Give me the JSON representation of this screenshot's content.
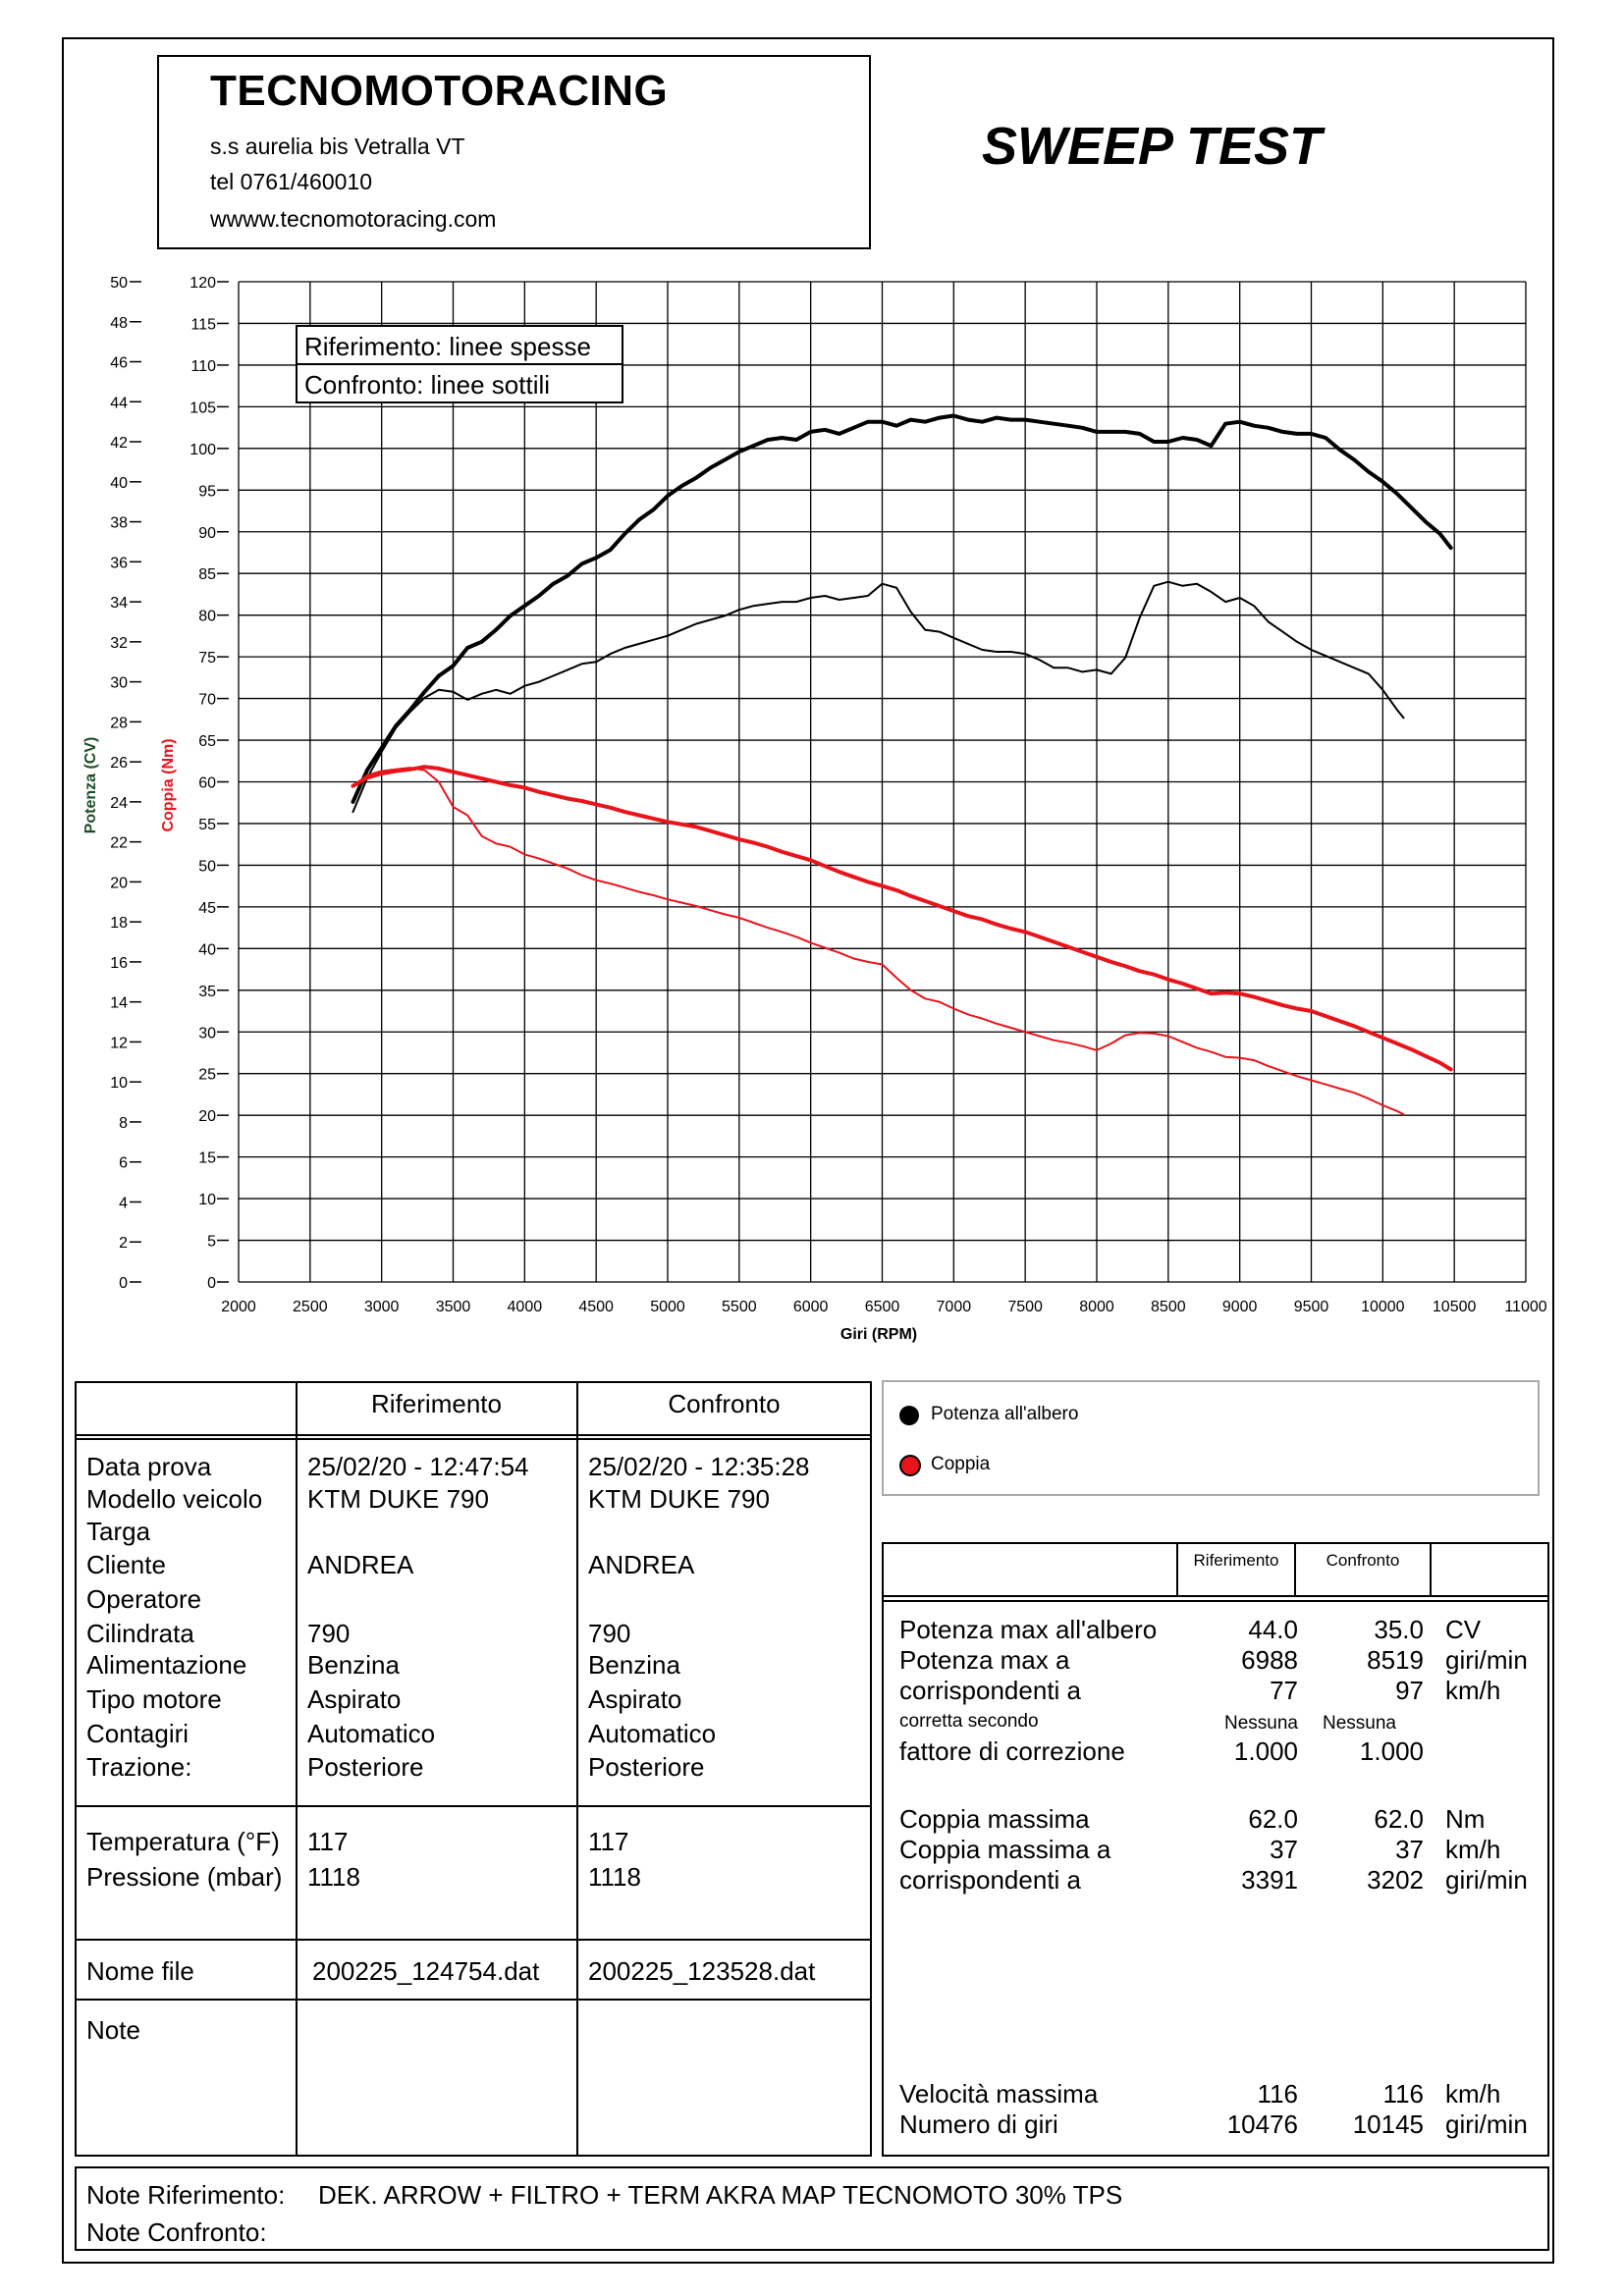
{
  "header": {
    "company": "TECNOMOTORACING",
    "address": "s.s aurelia bis  Vetralla  VT",
    "phone": "tel 0761/460010",
    "website": "wwww.tecnomotoracing.com",
    "test_title": "SWEEP TEST"
  },
  "chart_data": {
    "type": "line",
    "xlabel": "Giri (RPM)",
    "ylabel_left": "Potenza (CV)",
    "ylabel_right": "Coppia (Nm)",
    "xlim": [
      2000,
      11000
    ],
    "ylim_power": [
      0,
      50
    ],
    "ylim_torque": [
      0,
      120
    ],
    "x_ticks": [
      "2000",
      "2500",
      "3000",
      "3500",
      "4000",
      "4500",
      "5000",
      "5500",
      "6000",
      "6500",
      "7000",
      "7500",
      "8000",
      "8500",
      "9000",
      "9500",
      "10000",
      "10500",
      "11000"
    ],
    "power_ticks": [
      "0",
      "2",
      "4",
      "6",
      "8",
      "10",
      "12",
      "14",
      "16",
      "18",
      "20",
      "22",
      "24",
      "26",
      "28",
      "30",
      "32",
      "34",
      "36",
      "38",
      "40",
      "42",
      "44",
      "46",
      "48",
      "50"
    ],
    "torque_ticks": [
      "0",
      "5",
      "10",
      "15",
      "20",
      "25",
      "30",
      "35",
      "40",
      "45",
      "50",
      "55",
      "60",
      "65",
      "70",
      "75",
      "80",
      "85",
      "90",
      "95",
      "100",
      "105",
      "110",
      "115",
      "120"
    ],
    "grid": true,
    "legend_box": [
      "Riferimento: linee spesse",
      "Confronto: linee sottili"
    ],
    "colors": {
      "power": "#000000",
      "torque": "#e8141c"
    },
    "series": [
      {
        "name": "Potenza all'albero",
        "role": "Riferimento",
        "color": "#000000",
        "x": [
          2800,
          2900,
          3000,
          3100,
          3200,
          3300,
          3400,
          3500,
          3600,
          3700,
          3800,
          3900,
          4000,
          4100,
          4200,
          4300,
          4400,
          4500,
          4600,
          4700,
          4800,
          4900,
          5000,
          5100,
          5200,
          5300,
          5400,
          5500,
          5600,
          5700,
          5800,
          5900,
          6000,
          6100,
          6200,
          6300,
          6400,
          6500,
          6600,
          6700,
          6800,
          6900,
          7000,
          7100,
          7200,
          7300,
          7400,
          7500,
          7600,
          7700,
          7800,
          7900,
          8000,
          8100,
          8200,
          8300,
          8400,
          8500,
          8600,
          8700,
          8800,
          8900,
          9000,
          9100,
          9200,
          9300,
          9400,
          9500,
          9600,
          9700,
          9800,
          9900,
          10000,
          10100,
          10200,
          10300,
          10400,
          10476
        ],
        "y": [
          24.0,
          25.6,
          26.7,
          27.8,
          28.6,
          29.5,
          30.3,
          30.8,
          31.7,
          32.0,
          32.6,
          33.3,
          33.8,
          34.3,
          34.9,
          35.3,
          35.9,
          36.2,
          36.6,
          37.4,
          38.1,
          38.6,
          39.3,
          39.8,
          40.2,
          40.7,
          41.1,
          41.5,
          41.8,
          42.1,
          42.2,
          42.1,
          42.5,
          42.6,
          42.4,
          42.7,
          43.0,
          43.0,
          42.8,
          43.1,
          43.0,
          43.2,
          43.3,
          43.1,
          43.0,
          43.2,
          43.1,
          43.1,
          43.0,
          42.9,
          42.8,
          42.7,
          42.5,
          42.5,
          42.5,
          42.4,
          42.0,
          42.0,
          42.2,
          42.1,
          41.8,
          42.9,
          43.0,
          42.8,
          42.7,
          42.5,
          42.4,
          42.4,
          42.2,
          41.6,
          41.1,
          40.5,
          40.0,
          39.4,
          38.7,
          38.0,
          37.4,
          36.7
        ]
      },
      {
        "name": "Potenza all'albero",
        "role": "Confronto",
        "color": "#000000",
        "x": [
          2800,
          2900,
          3000,
          3100,
          3200,
          3300,
          3400,
          3500,
          3600,
          3700,
          3800,
          3900,
          4000,
          4100,
          4200,
          4300,
          4400,
          4500,
          4600,
          4700,
          4800,
          4900,
          5000,
          5100,
          5200,
          5300,
          5400,
          5500,
          5600,
          5700,
          5800,
          5900,
          6000,
          6100,
          6200,
          6300,
          6400,
          6500,
          6600,
          6700,
          6800,
          6900,
          7000,
          7100,
          7200,
          7300,
          7400,
          7500,
          7600,
          7700,
          7800,
          7900,
          8000,
          8100,
          8200,
          8300,
          8400,
          8500,
          8600,
          8700,
          8800,
          8900,
          9000,
          9100,
          9200,
          9300,
          9400,
          9500,
          9600,
          9700,
          9800,
          9900,
          10000,
          10100,
          10145
        ],
        "y": [
          23.5,
          25.2,
          26.5,
          27.7,
          28.5,
          29.2,
          29.6,
          29.5,
          29.1,
          29.4,
          29.6,
          29.4,
          29.8,
          30.0,
          30.3,
          30.6,
          30.9,
          31.0,
          31.4,
          31.7,
          31.9,
          32.1,
          32.3,
          32.6,
          32.9,
          33.1,
          33.3,
          33.6,
          33.8,
          33.9,
          34.0,
          34.0,
          34.2,
          34.3,
          34.1,
          34.2,
          34.3,
          34.9,
          34.7,
          33.5,
          32.6,
          32.5,
          32.2,
          31.9,
          31.6,
          31.5,
          31.5,
          31.4,
          31.1,
          30.7,
          30.7,
          30.5,
          30.6,
          30.4,
          31.2,
          33.2,
          34.8,
          35.0,
          34.8,
          34.9,
          34.5,
          34.0,
          34.2,
          33.8,
          33.0,
          32.5,
          32.0,
          31.6,
          31.3,
          31.0,
          30.7,
          30.4,
          29.6,
          28.6,
          28.2
        ]
      },
      {
        "name": "Coppia",
        "role": "Riferimento",
        "color": "#e8141c",
        "x": [
          2800,
          2900,
          3000,
          3100,
          3200,
          3300,
          3400,
          3500,
          3600,
          3700,
          3800,
          3900,
          4000,
          4100,
          4200,
          4300,
          4400,
          4500,
          4600,
          4700,
          4800,
          4900,
          5000,
          5100,
          5200,
          5300,
          5400,
          5500,
          5600,
          5700,
          5800,
          5900,
          6000,
          6100,
          6200,
          6300,
          6400,
          6500,
          6600,
          6700,
          6800,
          6900,
          7000,
          7100,
          7200,
          7300,
          7400,
          7500,
          7600,
          7700,
          7800,
          7900,
          8000,
          8100,
          8200,
          8300,
          8400,
          8500,
          8600,
          8700,
          8800,
          8900,
          9000,
          9100,
          9200,
          9300,
          9400,
          9500,
          9600,
          9700,
          9800,
          9900,
          10000,
          10100,
          10200,
          10300,
          10400,
          10476
        ],
        "y": [
          59.5,
          60.5,
          61.0,
          61.3,
          61.5,
          61.8,
          61.6,
          61.2,
          60.8,
          60.4,
          60.0,
          59.6,
          59.3,
          58.8,
          58.4,
          58.0,
          57.7,
          57.3,
          56.9,
          56.4,
          56.0,
          55.6,
          55.2,
          54.9,
          54.6,
          54.1,
          53.6,
          53.1,
          52.7,
          52.2,
          51.6,
          51.1,
          50.6,
          49.9,
          49.2,
          48.6,
          48.0,
          47.5,
          47.0,
          46.3,
          45.7,
          45.1,
          44.5,
          43.9,
          43.5,
          42.9,
          42.4,
          42.0,
          41.4,
          40.8,
          40.2,
          39.6,
          39.0,
          38.4,
          37.9,
          37.3,
          36.9,
          36.3,
          35.8,
          35.2,
          34.6,
          34.7,
          34.6,
          34.2,
          33.7,
          33.2,
          32.8,
          32.5,
          31.9,
          31.3,
          30.7,
          30.0,
          29.3,
          28.6,
          27.9,
          27.1,
          26.3,
          25.5
        ]
      },
      {
        "name": "Coppia",
        "role": "Confronto",
        "color": "#e8141c",
        "x": [
          2800,
          2900,
          3000,
          3100,
          3200,
          3300,
          3400,
          3500,
          3600,
          3700,
          3800,
          3900,
          4000,
          4100,
          4200,
          4300,
          4400,
          4500,
          4600,
          4700,
          4800,
          4900,
          5000,
          5100,
          5200,
          5300,
          5400,
          5500,
          5600,
          5700,
          5800,
          5900,
          6000,
          6100,
          6200,
          6300,
          6400,
          6500,
          6600,
          6700,
          6800,
          6900,
          7000,
          7100,
          7200,
          7300,
          7400,
          7500,
          7600,
          7700,
          7800,
          7900,
          8000,
          8100,
          8200,
          8300,
          8400,
          8500,
          8600,
          8700,
          8800,
          8900,
          9000,
          9100,
          9200,
          9300,
          9400,
          9500,
          9600,
          9700,
          9800,
          9900,
          10000,
          10100,
          10145
        ],
        "y": [
          59.5,
          60.8,
          61.3,
          61.5,
          61.7,
          61.4,
          60.0,
          57.0,
          56.0,
          53.5,
          52.6,
          52.2,
          51.3,
          50.8,
          50.2,
          49.6,
          48.8,
          48.2,
          47.8,
          47.3,
          46.8,
          46.4,
          45.9,
          45.5,
          45.1,
          44.6,
          44.1,
          43.7,
          43.1,
          42.5,
          42.0,
          41.4,
          40.7,
          40.1,
          39.5,
          38.8,
          38.4,
          38.1,
          36.5,
          35.0,
          34.0,
          33.6,
          32.8,
          32.1,
          31.6,
          31.0,
          30.5,
          30.0,
          29.5,
          29.0,
          28.7,
          28.3,
          27.8,
          28.6,
          29.6,
          29.9,
          29.8,
          29.5,
          28.8,
          28.1,
          27.6,
          27.0,
          26.9,
          26.6,
          25.9,
          25.3,
          24.7,
          24.2,
          23.7,
          23.2,
          22.7,
          22.0,
          21.2,
          20.5,
          20.1
        ]
      }
    ]
  },
  "legend": {
    "power": "Potenza all'albero",
    "torque": "Coppia"
  },
  "info_table": {
    "col_ref": "Riferimento",
    "col_cmp": "Confronto",
    "rows": [
      {
        "label": "Data prova",
        "ref": "25/02/20 - 12:47:54",
        "cmp": "25/02/20 - 12:35:28"
      },
      {
        "label": "Modello veicolo",
        "ref": "KTM DUKE 790",
        "cmp": "KTM DUKE 790"
      },
      {
        "label": "Targa",
        "ref": "",
        "cmp": ""
      },
      {
        "label": "Cliente",
        "ref": "ANDREA",
        "cmp": "ANDREA"
      },
      {
        "label": "Operatore",
        "ref": "",
        "cmp": ""
      },
      {
        "label": "Cilindrata",
        "ref": "790",
        "cmp": "790"
      },
      {
        "label": "Alimentazione",
        "ref": "Benzina",
        "cmp": "Benzina"
      },
      {
        "label": "Tipo motore",
        "ref": "Aspirato",
        "cmp": "Aspirato"
      },
      {
        "label": "Contagiri",
        "ref": "Automatico",
        "cmp": "Automatico"
      },
      {
        "label": "Trazione:",
        "ref": "Posteriore",
        "cmp": "Posteriore"
      }
    ],
    "env": [
      {
        "label": "Temperatura (°F)",
        "ref": "117",
        "cmp": "117"
      },
      {
        "label": "Pressione (mbar)",
        "ref": "1118",
        "cmp": "1118"
      }
    ],
    "file": {
      "label": "Nome file",
      "ref": "200225_124754.dat",
      "cmp": "200225_123528.dat"
    },
    "note_label": "Note"
  },
  "results_table": {
    "col_ref": "Riferimento",
    "col_cmp": "Confronto",
    "power_max": {
      "label": "Potenza max all'albero",
      "ref": "44.0",
      "cmp": "35.0",
      "unit": "CV"
    },
    "power_rpm": {
      "label": "Potenza max a",
      "ref": "6988",
      "cmp": "8519",
      "unit": "giri/min"
    },
    "power_speed": {
      "label": "corrispondenti a",
      "ref": "77",
      "cmp": "97",
      "unit": "km/h"
    },
    "correction_small": {
      "label": "corretta secondo",
      "ref": "Nessuna",
      "cmp": "Nessuna"
    },
    "correction_factor": {
      "label": "fattore di correzione",
      "ref": "1.000",
      "cmp": "1.000"
    },
    "torque_max": {
      "label": "Coppia massima",
      "ref": "62.0",
      "cmp": "62.0",
      "unit": "Nm"
    },
    "torque_speed": {
      "label": "Coppia massima a",
      "ref": "37",
      "cmp": "37",
      "unit": "km/h"
    },
    "torque_rpm": {
      "label": "corrispondenti a",
      "ref": "3391",
      "cmp": "3202",
      "unit": "giri/min"
    },
    "max_speed": {
      "label": "Velocità massima",
      "ref": "116",
      "cmp": "116",
      "unit": "km/h"
    },
    "max_rpm": {
      "label": "Numero di giri",
      "ref": "10476",
      "cmp": "10145",
      "unit": "giri/min"
    }
  },
  "notes": {
    "ref_label": "Note Riferimento:",
    "ref_text": "DEK. ARROW + FILTRO  + TERM AKRA MAP TECNOMOTO 30% TPS",
    "cmp_label": "Note Confronto:",
    "cmp_text": ""
  }
}
